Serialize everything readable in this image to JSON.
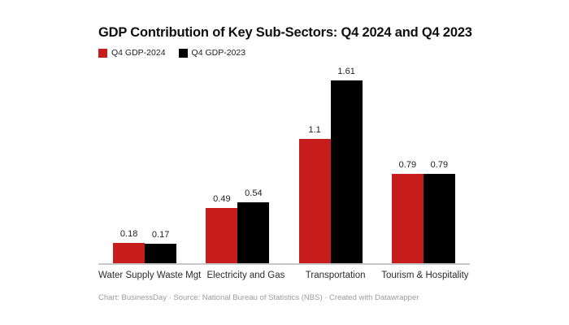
{
  "title": "GDP Contribution of Key Sub-Sectors: Q4 2024 and Q4 2023",
  "legend": {
    "items": [
      {
        "label": "Q4 GDP-2024",
        "color": "#c71e1d"
      },
      {
        "label": "Q4 GDP-2023",
        "color": "#000000"
      }
    ]
  },
  "footer": "Chart: BusinessDay · Source: National Bureau of Statistics (NBS) · Created with Datawrapper",
  "colors": {
    "background": "#ffffff",
    "series_2024": "#c71e1d",
    "series_2023": "#000000",
    "axis_line": "#c8c8c8",
    "title_text": "#0f0f0f",
    "label_text": "#2b2b2b",
    "footer_text": "#9b9b9b"
  },
  "chart_data": {
    "type": "bar",
    "title": "GDP Contribution of Key Sub-Sectors: Q4 2024 and Q4 2023",
    "categories": [
      "Water Supply Waste Mgt",
      "Electricity and Gas",
      "Transportation",
      "Tourism & Hospitality"
    ],
    "series": [
      {
        "name": "Q4 GDP-2024",
        "color": "#c71e1d",
        "values": [
          0.18,
          0.49,
          1.1,
          0.79
        ],
        "labels": [
          "0.18",
          "0.49",
          "1.1",
          "0.79"
        ]
      },
      {
        "name": "Q4 GDP-2023",
        "color": "#000000",
        "values": [
          0.17,
          0.54,
          1.61,
          0.79
        ],
        "labels": [
          "0.17",
          "0.54",
          "1.61",
          "0.79"
        ]
      }
    ],
    "xlabel": "",
    "ylabel": "",
    "ylim": [
      0,
      1.7
    ],
    "grid": false,
    "y_axis_shown": false,
    "value_labels_shown": true,
    "legend_position": "top-left"
  }
}
